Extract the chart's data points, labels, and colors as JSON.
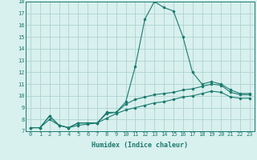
{
  "xlabel": "Humidex (Indice chaleur)",
  "x_values": [
    0,
    1,
    2,
    3,
    4,
    5,
    6,
    7,
    8,
    9,
    10,
    11,
    12,
    13,
    14,
    15,
    16,
    17,
    18,
    19,
    20,
    21,
    22,
    23
  ],
  "line1_y": [
    7.3,
    7.3,
    8.3,
    7.5,
    7.3,
    7.7,
    7.7,
    7.7,
    8.6,
    8.6,
    9.5,
    12.5,
    16.5,
    18.0,
    17.5,
    17.2,
    15.0,
    12.0,
    11.0,
    11.2,
    11.0,
    10.5,
    10.2,
    10.2
  ],
  "line2_y": [
    7.3,
    7.3,
    8.3,
    7.5,
    7.3,
    7.7,
    7.7,
    7.7,
    8.5,
    8.6,
    9.3,
    9.7,
    9.9,
    10.1,
    10.2,
    10.3,
    10.5,
    10.6,
    10.8,
    11.0,
    10.9,
    10.3,
    10.1,
    10.1
  ],
  "line3_y": [
    7.3,
    7.3,
    8.0,
    7.5,
    7.3,
    7.5,
    7.6,
    7.7,
    8.1,
    8.5,
    8.8,
    9.0,
    9.2,
    9.4,
    9.5,
    9.7,
    9.9,
    10.0,
    10.2,
    10.4,
    10.3,
    9.9,
    9.8,
    9.8
  ],
  "line_color": "#1a7a6e",
  "bg_color": "#d8f0ee",
  "grid_color": "#aed4cf",
  "ylim": [
    7,
    18
  ],
  "xlim": [
    -0.5,
    23.5
  ],
  "yticks": [
    7,
    8,
    9,
    10,
    11,
    12,
    13,
    14,
    15,
    16,
    17,
    18
  ],
  "xticks": [
    0,
    1,
    2,
    3,
    4,
    5,
    6,
    7,
    8,
    9,
    10,
    11,
    12,
    13,
    14,
    15,
    16,
    17,
    18,
    19,
    20,
    21,
    22,
    23
  ],
  "tick_fontsize": 5.0,
  "xlabel_fontsize": 6.0
}
